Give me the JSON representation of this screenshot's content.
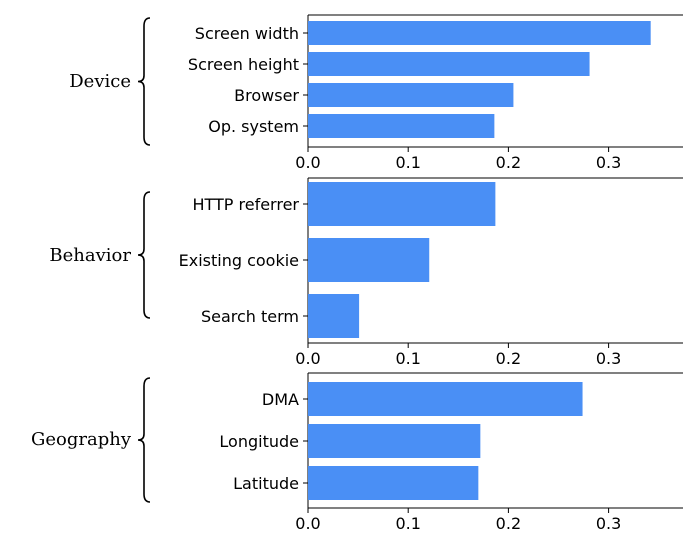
{
  "chart_data": [
    {
      "type": "bar",
      "orientation": "horizontal",
      "group": "Device",
      "categories": [
        "Screen width",
        "Screen height",
        "Browser",
        "Op. system"
      ],
      "values": [
        0.342,
        0.281,
        0.205,
        0.186
      ],
      "xticks": [
        "0.0",
        "0.1",
        "0.2",
        "0.3"
      ],
      "xlim": [
        0,
        0.37
      ],
      "color": "#4a8ff5"
    },
    {
      "type": "bar",
      "orientation": "horizontal",
      "group": "Behavior",
      "categories": [
        "HTTP referrer",
        "Existing cookie",
        "Search term"
      ],
      "values": [
        0.187,
        0.121,
        0.051
      ],
      "xticks": [
        "0.0",
        "0.1",
        "0.2",
        "0.3"
      ],
      "xlim": [
        0,
        0.37
      ],
      "color": "#4a8ff5"
    },
    {
      "type": "bar",
      "orientation": "horizontal",
      "group": "Geography",
      "categories": [
        "DMA",
        "Longitude",
        "Latitude"
      ],
      "values": [
        0.274,
        0.172,
        0.17
      ],
      "xticks": [
        "0.0",
        "0.1",
        "0.2",
        "0.3"
      ],
      "xlim": [
        0,
        0.37
      ],
      "color": "#4a8ff5"
    }
  ]
}
